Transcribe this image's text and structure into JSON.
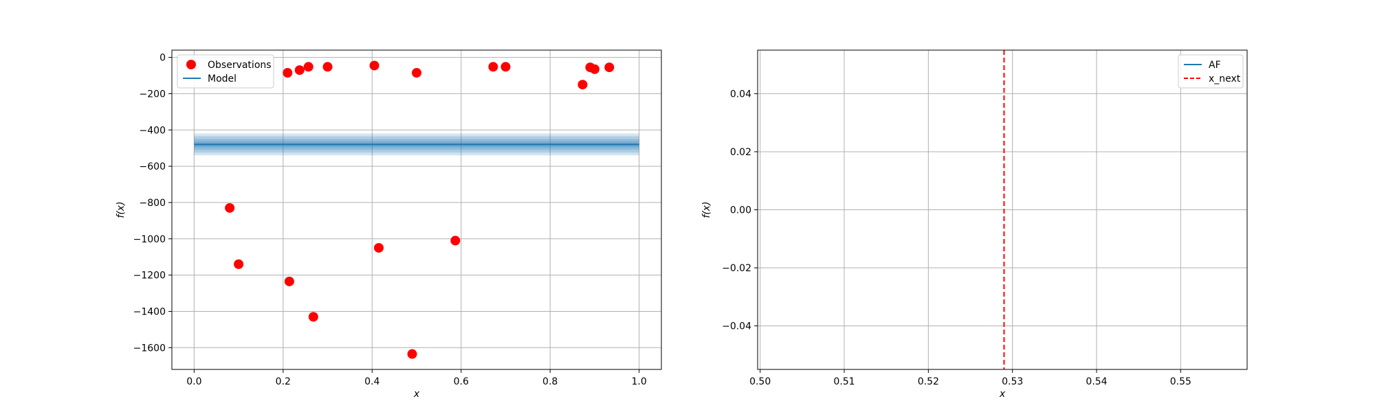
{
  "chart_data": [
    {
      "type": "scatter",
      "xlabel": "x",
      "ylabel": "f(x)",
      "xlim": [
        -0.05,
        1.05
      ],
      "ylim": [
        -1720,
        40
      ],
      "xticks": [
        0.0,
        0.2,
        0.4,
        0.6,
        0.8,
        1.0
      ],
      "xtick_labels": [
        "0.0",
        "0.2",
        "0.4",
        "0.6",
        "0.8",
        "1.0"
      ],
      "yticks": [
        0,
        -200,
        -400,
        -600,
        -800,
        -1000,
        -1200,
        -1400,
        -1600
      ],
      "ytick_labels": [
        "0",
        "−200",
        "−400",
        "−600",
        "−800",
        "−1000",
        "−1200",
        "−1400",
        "−1600"
      ],
      "grid": true,
      "legend_position": "top-left",
      "series": [
        {
          "name": "Observations",
          "kind": "scatter",
          "color": "#ff0000",
          "points": [
            {
              "x": 0.08,
              "y": -830
            },
            {
              "x": 0.1,
              "y": -1140
            },
            {
              "x": 0.21,
              "y": -85
            },
            {
              "x": 0.214,
              "y": -1235
            },
            {
              "x": 0.237,
              "y": -70
            },
            {
              "x": 0.257,
              "y": -52
            },
            {
              "x": 0.268,
              "y": -1430
            },
            {
              "x": 0.3,
              "y": -52
            },
            {
              "x": 0.405,
              "y": -45
            },
            {
              "x": 0.415,
              "y": -1050
            },
            {
              "x": 0.49,
              "y": -1635
            },
            {
              "x": 0.5,
              "y": -85
            },
            {
              "x": 0.587,
              "y": -1010
            },
            {
              "x": 0.672,
              "y": -52
            },
            {
              "x": 0.7,
              "y": -52
            },
            {
              "x": 0.873,
              "y": -150
            },
            {
              "x": 0.89,
              "y": -55
            },
            {
              "x": 0.9,
              "y": -65
            },
            {
              "x": 0.933,
              "y": -55
            }
          ]
        },
        {
          "name": "Model",
          "kind": "line",
          "color": "#1f77b4",
          "x": [
            0.0,
            1.0
          ],
          "y": [
            -480,
            -480
          ],
          "uncertainty_bands": [
            60,
            45,
            30,
            18,
            8
          ]
        }
      ]
    },
    {
      "type": "line",
      "xlabel": "x",
      "ylabel": "f(x)",
      "xlim": [
        0.4997,
        0.5579
      ],
      "ylim": [
        -0.055,
        0.055
      ],
      "xticks": [
        0.5,
        0.51,
        0.52,
        0.53,
        0.54,
        0.55
      ],
      "xtick_labels": [
        "0.50",
        "0.51",
        "0.52",
        "0.53",
        "0.54",
        "0.55"
      ],
      "yticks": [
        0.04,
        0.02,
        0.0,
        -0.02,
        -0.04
      ],
      "ytick_labels": [
        "0.04",
        "0.02",
        "0.00",
        "−0.02",
        "−0.04"
      ],
      "grid": true,
      "legend_position": "top-right",
      "series": [
        {
          "name": "AF",
          "kind": "line",
          "color": "#1f77b4",
          "x": [],
          "y": []
        },
        {
          "name": "x_next",
          "kind": "vline",
          "color": "#ff0000",
          "x": 0.529
        }
      ]
    }
  ]
}
